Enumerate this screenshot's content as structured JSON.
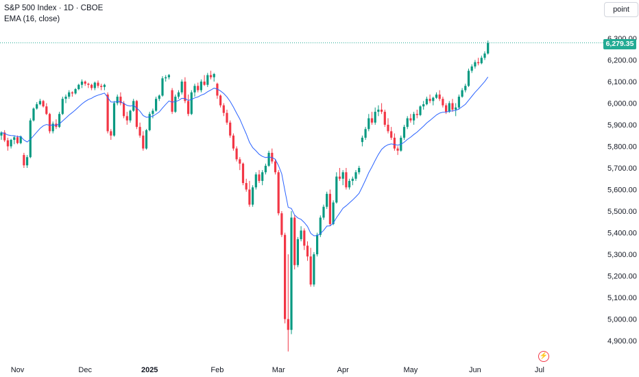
{
  "legend": {
    "symbol_line": "S&P 500 Index · 1D · CBOE",
    "indicator_line": "EMA (16, close)"
  },
  "controls": {
    "price_unit_button": "point"
  },
  "last_price_label": "6,279.35",
  "colors": {
    "up": "#089981",
    "down": "#f23645",
    "ema": "#2962ff",
    "last_price": "#22ab94"
  },
  "icons": {
    "events": "lightning-bolt-icon"
  },
  "chart_data": {
    "type": "candlestick",
    "title": "S&P 500 Index · 1D · CBOE",
    "ema_label": "EMA (16, close)",
    "y_ticks": [
      4900,
      5000,
      5100,
      5200,
      5300,
      5400,
      5500,
      5600,
      5700,
      5800,
      5900,
      6000,
      6100,
      6200,
      6300
    ],
    "y_tick_labels": [
      "4,900.00",
      "5,000.00",
      "5,100.00",
      "5,200.00",
      "5,300.00",
      "5,400.00",
      "5,500.00",
      "5,600.00",
      "5,700.00",
      "5,800.00",
      "5,900.00",
      "6,000.00",
      "6,100.00",
      "6,200.00",
      "6,300.00"
    ],
    "ylim": [
      4850,
      6360
    ],
    "x_ticks": [
      "Nov",
      "Dec",
      "2025",
      "Feb",
      "Mar",
      "Apr",
      "May",
      "Jun",
      "Jul"
    ],
    "x_tick_index": [
      5,
      26,
      46,
      67,
      86,
      106,
      127,
      147,
      167
    ],
    "x_tick_bold": [
      false,
      false,
      true,
      false,
      false,
      false,
      false,
      false,
      false
    ],
    "last_price": 6279.35,
    "grid": false,
    "candles": [
      [
        5850,
        5870,
        5830,
        5864
      ],
      [
        5864,
        5875,
        5820,
        5828
      ],
      [
        5828,
        5840,
        5780,
        5800
      ],
      [
        5800,
        5835,
        5790,
        5830
      ],
      [
        5830,
        5850,
        5810,
        5842
      ],
      [
        5842,
        5850,
        5810,
        5815
      ],
      [
        5815,
        5850,
        5810,
        5846
      ],
      [
        5760,
        5770,
        5700,
        5712
      ],
      [
        5712,
        5760,
        5700,
        5750
      ],
      [
        5750,
        5930,
        5745,
        5920
      ],
      [
        5920,
        5980,
        5915,
        5975
      ],
      [
        5975,
        6005,
        5970,
        5995
      ],
      [
        5995,
        6020,
        5990,
        6010
      ],
      [
        6010,
        6015,
        5980,
        5985
      ],
      [
        5985,
        6000,
        5945,
        5950
      ],
      [
        5950,
        5955,
        5860,
        5870
      ],
      [
        5870,
        5915,
        5860,
        5905
      ],
      [
        5905,
        5925,
        5880,
        5890
      ],
      [
        5890,
        5960,
        5885,
        5950
      ],
      [
        5950,
        6030,
        5945,
        6020
      ],
      [
        6020,
        6040,
        6000,
        6030
      ],
      [
        6030,
        6060,
        6020,
        6050
      ],
      [
        6050,
        6055,
        6030,
        6045
      ],
      [
        6045,
        6070,
        6040,
        6065
      ],
      [
        6065,
        6090,
        6060,
        6085
      ],
      [
        6085,
        6110,
        6070,
        6100
      ],
      [
        6100,
        6105,
        6080,
        6090
      ],
      [
        6090,
        6095,
        6070,
        6085
      ],
      [
        6085,
        6090,
        6060,
        6070
      ],
      [
        6070,
        6100,
        6060,
        6095
      ],
      [
        6095,
        6105,
        6070,
        6080
      ],
      [
        6080,
        6090,
        6060,
        6075
      ],
      [
        6075,
        6090,
        6060,
        6085
      ],
      [
        6040,
        6050,
        5860,
        5870
      ],
      [
        5870,
        5880,
        5830,
        5850
      ],
      [
        5850,
        6010,
        5845,
        6000
      ],
      [
        6000,
        6040,
        5990,
        6030
      ],
      [
        6030,
        6050,
        5990,
        6000
      ],
      [
        6000,
        6010,
        5930,
        5940
      ],
      [
        5940,
        5960,
        5900,
        5920
      ],
      [
        5920,
        5970,
        5910,
        5965
      ],
      [
        5965,
        6020,
        5960,
        6010
      ],
      [
        6010,
        6015,
        5880,
        5890
      ],
      [
        5890,
        5910,
        5840,
        5850
      ],
      [
        5850,
        5870,
        5780,
        5790
      ],
      [
        5790,
        5880,
        5785,
        5875
      ],
      [
        5875,
        5960,
        5870,
        5950
      ],
      [
        5950,
        5975,
        5930,
        5965
      ],
      [
        5965,
        6030,
        5960,
        6020
      ],
      [
        6020,
        6040,
        6010,
        6035
      ],
      [
        6035,
        6125,
        6030,
        6115
      ],
      [
        6115,
        6130,
        6100,
        6120
      ],
      [
        6120,
        6135,
        6110,
        6130
      ],
      [
        6060,
        6070,
        5950,
        5960
      ],
      [
        5960,
        6040,
        5955,
        6030
      ],
      [
        6030,
        6060,
        6020,
        6050
      ],
      [
        6050,
        6110,
        6040,
        6100
      ],
      [
        6100,
        6120,
        6000,
        6010
      ],
      [
        6010,
        6040,
        5940,
        5950
      ],
      [
        5950,
        6060,
        5945,
        6050
      ],
      [
        6050,
        6090,
        6030,
        6080
      ],
      [
        6080,
        6095,
        6050,
        6060
      ],
      [
        6060,
        6110,
        6050,
        6100
      ],
      [
        6100,
        6130,
        6080,
        6085
      ],
      [
        6085,
        6140,
        6075,
        6130
      ],
      [
        6130,
        6150,
        6110,
        6120
      ],
      [
        6120,
        6140,
        6100,
        6135
      ],
      [
        6090,
        6095,
        6020,
        6035
      ],
      [
        6035,
        6040,
        5980,
        5990
      ],
      [
        5990,
        6000,
        5940,
        5955
      ],
      [
        5955,
        5970,
        5900,
        5910
      ],
      [
        5910,
        5920,
        5840,
        5850
      ],
      [
        5850,
        5860,
        5780,
        5790
      ],
      [
        5790,
        5800,
        5730,
        5740
      ],
      [
        5740,
        5750,
        5690,
        5720
      ],
      [
        5720,
        5725,
        5620,
        5630
      ],
      [
        5630,
        5650,
        5590,
        5600
      ],
      [
        5600,
        5640,
        5520,
        5530
      ],
      [
        5530,
        5620,
        5520,
        5610
      ],
      [
        5610,
        5680,
        5600,
        5670
      ],
      [
        5670,
        5690,
        5630,
        5640
      ],
      [
        5640,
        5690,
        5620,
        5680
      ],
      [
        5680,
        5720,
        5670,
        5710
      ],
      [
        5710,
        5780,
        5705,
        5770
      ],
      [
        5770,
        5790,
        5720,
        5730
      ],
      [
        5730,
        5740,
        5670,
        5680
      ],
      [
        5680,
        5690,
        5480,
        5490
      ],
      [
        5490,
        5500,
        5380,
        5390
      ],
      [
        5390,
        5400,
        4980,
        5000
      ],
      [
        5000,
        5300,
        4850,
        4950
      ],
      [
        4950,
        5500,
        4930,
        5470
      ],
      [
        5470,
        5480,
        5230,
        5250
      ],
      [
        5250,
        5380,
        5240,
        5370
      ],
      [
        5370,
        5430,
        5360,
        5410
      ],
      [
        5410,
        5420,
        5320,
        5340
      ],
      [
        5340,
        5360,
        5270,
        5290
      ],
      [
        5290,
        5330,
        5150,
        5160
      ],
      [
        5160,
        5310,
        5150,
        5300
      ],
      [
        5300,
        5400,
        5290,
        5390
      ],
      [
        5390,
        5480,
        5380,
        5470
      ],
      [
        5470,
        5530,
        5460,
        5520
      ],
      [
        5520,
        5590,
        5510,
        5580
      ],
      [
        5580,
        5600,
        5430,
        5440
      ],
      [
        5440,
        5550,
        5435,
        5540
      ],
      [
        5540,
        5680,
        5535,
        5660
      ],
      [
        5660,
        5700,
        5640,
        5650
      ],
      [
        5650,
        5690,
        5620,
        5680
      ],
      [
        5680,
        5700,
        5600,
        5610
      ],
      [
        5610,
        5650,
        5600,
        5640
      ],
      [
        5640,
        5660,
        5620,
        5650
      ],
      [
        5650,
        5690,
        5640,
        5680
      ],
      [
        5680,
        5710,
        5670,
        5700
      ],
      [
        5820,
        5850,
        5800,
        5840
      ],
      [
        5840,
        5890,
        5830,
        5880
      ],
      [
        5880,
        5950,
        5870,
        5930
      ],
      [
        5930,
        5960,
        5900,
        5910
      ],
      [
        5910,
        5980,
        5900,
        5960
      ],
      [
        5960,
        5990,
        5940,
        5970
      ],
      [
        5970,
        6000,
        5950,
        5960
      ],
      [
        5960,
        5970,
        5890,
        5900
      ],
      [
        5900,
        5930,
        5860,
        5870
      ],
      [
        5870,
        5890,
        5830,
        5840
      ],
      [
        5840,
        5860,
        5780,
        5790
      ],
      [
        5790,
        5800,
        5760,
        5780
      ],
      [
        5780,
        5850,
        5775,
        5840
      ],
      [
        5840,
        5900,
        5830,
        5890
      ],
      [
        5890,
        5940,
        5880,
        5930
      ],
      [
        5930,
        5950,
        5910,
        5920
      ],
      [
        5920,
        5960,
        5900,
        5950
      ],
      [
        5950,
        5970,
        5930,
        5945
      ],
      [
        5945,
        5990,
        5940,
        5985
      ],
      [
        5985,
        6010,
        5970,
        5995
      ],
      [
        5995,
        6030,
        5990,
        6020
      ],
      [
        6020,
        6040,
        6000,
        6010
      ],
      [
        6010,
        6030,
        5990,
        6025
      ],
      [
        6025,
        6050,
        6020,
        6040
      ],
      [
        6040,
        6060,
        6010,
        6020
      ],
      [
        6020,
        6030,
        5980,
        5990
      ],
      [
        5990,
        6000,
        5950,
        5960
      ],
      [
        5960,
        6010,
        5955,
        6000
      ],
      [
        6000,
        6020,
        5960,
        5970
      ],
      [
        5970,
        6000,
        5940,
        5980
      ],
      [
        5980,
        6040,
        5970,
        6030
      ],
      [
        6030,
        6070,
        6025,
        6060
      ],
      [
        6060,
        6090,
        6050,
        6080
      ],
      [
        6080,
        6160,
        6075,
        6150
      ],
      [
        6150,
        6180,
        6140,
        6170
      ],
      [
        6170,
        6200,
        6160,
        6190
      ],
      [
        6190,
        6210,
        6175,
        6185
      ],
      [
        6185,
        6220,
        6180,
        6210
      ],
      [
        6210,
        6240,
        6200,
        6230
      ],
      [
        6230,
        6290,
        6225,
        6279.35
      ]
    ]
  }
}
